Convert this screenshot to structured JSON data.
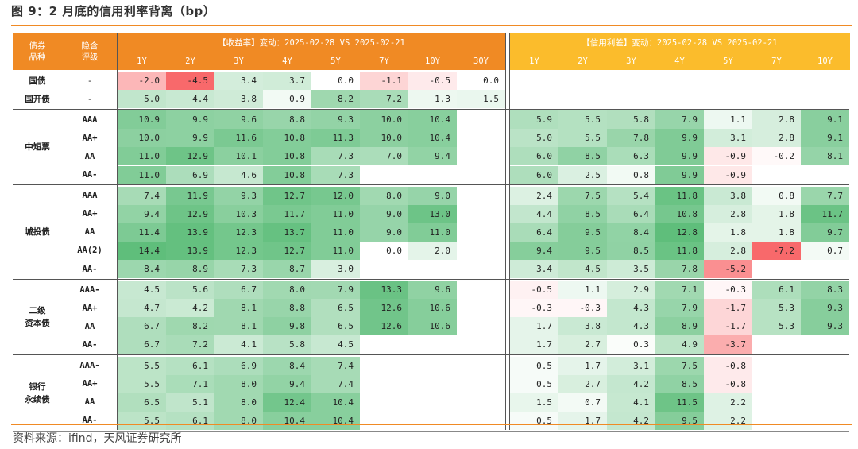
{
  "figure_title": "图 9：2 月底的信用利率背离（bp）",
  "source": "资料来源：ifind，天风证券研究所",
  "header": {
    "col_type": "债券\n品种",
    "col_rating": "隐含\n评级",
    "yield_title": "【收益率】变动：2025-02-28 VS 2025-02-21",
    "spread_title": "【信用利差】变动：2025-02-28 VS 2025-02-21",
    "yield_tenors": [
      "1Y",
      "2Y",
      "3Y",
      "4Y",
      "5Y",
      "7Y",
      "10Y",
      "30Y"
    ],
    "spread_tenors": [
      "1Y",
      "2Y",
      "3Y",
      "4Y",
      "5Y",
      "7Y",
      "10Y"
    ]
  },
  "colors": {
    "header_orange": "#f08a24",
    "header_yellow": "#fbbc2c",
    "positive_max": "#5fbe7b",
    "negative_max": "#f8696b",
    "neutral": "#ffffff"
  },
  "groups": [
    {
      "name": "国债",
      "rows": [
        {
          "rating": "-",
          "yield": [
            -2.0,
            -4.5,
            3.4,
            3.7,
            0.0,
            -1.1,
            -0.5,
            0.0
          ],
          "spread": [
            null,
            null,
            null,
            null,
            null,
            null,
            null
          ]
        }
      ]
    },
    {
      "name": "国开债",
      "rows": [
        {
          "rating": "-",
          "yield": [
            5.0,
            4.4,
            3.8,
            0.9,
            8.2,
            7.2,
            1.3,
            1.5
          ],
          "spread": [
            null,
            null,
            null,
            null,
            null,
            null,
            null
          ]
        }
      ]
    },
    {
      "name": "中短票",
      "rows": [
        {
          "rating": "AAA",
          "yield": [
            10.9,
            9.9,
            9.6,
            8.8,
            9.3,
            10.0,
            10.4,
            null
          ],
          "spread": [
            5.9,
            5.5,
            5.8,
            7.9,
            1.1,
            2.8,
            9.1
          ]
        },
        {
          "rating": "AA+",
          "yield": [
            10.0,
            9.9,
            11.6,
            10.8,
            11.3,
            10.0,
            10.4,
            null
          ],
          "spread": [
            5.0,
            5.5,
            7.8,
            9.9,
            3.1,
            2.8,
            9.1
          ]
        },
        {
          "rating": "AA",
          "yield": [
            11.0,
            12.9,
            10.1,
            10.8,
            7.3,
            7.0,
            9.4,
            null
          ],
          "spread": [
            6.0,
            8.5,
            6.3,
            9.9,
            -0.9,
            -0.2,
            8.1
          ]
        },
        {
          "rating": "AA-",
          "yield": [
            11.0,
            6.9,
            4.6,
            10.8,
            7.3,
            null,
            null,
            null
          ],
          "spread": [
            6.0,
            2.5,
            0.8,
            9.9,
            -0.9,
            null,
            null
          ]
        }
      ]
    },
    {
      "name": "城投债",
      "rows": [
        {
          "rating": "AAA",
          "yield": [
            7.4,
            11.9,
            9.3,
            12.7,
            12.0,
            8.0,
            9.0,
            null
          ],
          "spread": [
            2.4,
            7.5,
            5.4,
            11.8,
            3.8,
            0.8,
            7.7
          ]
        },
        {
          "rating": "AA+",
          "yield": [
            9.4,
            12.9,
            10.3,
            11.7,
            11.0,
            9.0,
            13.0,
            null
          ],
          "spread": [
            4.4,
            8.5,
            6.4,
            10.8,
            2.8,
            1.8,
            11.7
          ]
        },
        {
          "rating": "AA",
          "yield": [
            11.4,
            13.9,
            12.3,
            13.7,
            11.0,
            9.0,
            11.0,
            null
          ],
          "spread": [
            6.4,
            9.5,
            8.4,
            12.8,
            1.8,
            1.8,
            9.7
          ]
        },
        {
          "rating": "AA(2)",
          "yield": [
            14.4,
            13.9,
            12.3,
            12.7,
            11.0,
            0.0,
            2.0,
            null
          ],
          "spread": [
            9.4,
            9.5,
            8.5,
            11.8,
            2.8,
            -7.2,
            0.7
          ]
        },
        {
          "rating": "AA-",
          "yield": [
            8.4,
            8.9,
            7.3,
            8.7,
            3.0,
            null,
            null,
            null
          ],
          "spread": [
            3.4,
            4.5,
            3.5,
            7.8,
            -5.2,
            null,
            null
          ]
        }
      ]
    },
    {
      "name": "二级\n资本债",
      "rows": [
        {
          "rating": "AAA-",
          "yield": [
            4.5,
            5.6,
            6.7,
            8.0,
            7.9,
            13.3,
            9.6,
            null
          ],
          "spread": [
            -0.5,
            1.1,
            2.9,
            7.1,
            -0.3,
            6.1,
            8.3
          ]
        },
        {
          "rating": "AA+",
          "yield": [
            4.7,
            4.2,
            8.1,
            8.8,
            6.5,
            12.6,
            10.6,
            null
          ],
          "spread": [
            -0.3,
            -0.3,
            4.3,
            7.9,
            -1.7,
            5.3,
            9.3
          ]
        },
        {
          "rating": "AA",
          "yield": [
            6.7,
            8.2,
            8.1,
            9.8,
            6.5,
            12.6,
            10.6,
            null
          ],
          "spread": [
            1.7,
            3.8,
            4.3,
            8.9,
            -1.7,
            5.3,
            9.3
          ]
        },
        {
          "rating": "AA-",
          "yield": [
            6.7,
            7.2,
            4.1,
            5.8,
            4.5,
            null,
            null,
            null
          ],
          "spread": [
            1.7,
            2.7,
            0.3,
            4.9,
            -3.7,
            null,
            null
          ]
        }
      ]
    },
    {
      "name": "银行\n永续债",
      "rows": [
        {
          "rating": "AAA-",
          "yield": [
            5.5,
            6.1,
            6.9,
            8.4,
            7.4,
            null,
            null,
            null
          ],
          "spread": [
            0.5,
            1.7,
            3.1,
            7.5,
            -0.8,
            null,
            null
          ]
        },
        {
          "rating": "AA+",
          "yield": [
            5.5,
            7.1,
            8.0,
            9.4,
            7.4,
            null,
            null,
            null
          ],
          "spread": [
            0.5,
            2.7,
            4.2,
            8.5,
            -0.8,
            null,
            null
          ]
        },
        {
          "rating": "AA",
          "yield": [
            6.5,
            5.1,
            8.0,
            12.4,
            10.4,
            null,
            null,
            null
          ],
          "spread": [
            1.5,
            0.7,
            4.1,
            11.5,
            2.2,
            null,
            null
          ]
        },
        {
          "rating": "AA-",
          "yield": [
            5.5,
            6.1,
            8.0,
            10.4,
            10.4,
            null,
            null,
            null
          ],
          "spread": [
            0.5,
            1.7,
            4.2,
            9.5,
            2.2,
            null,
            null
          ]
        }
      ]
    }
  ]
}
